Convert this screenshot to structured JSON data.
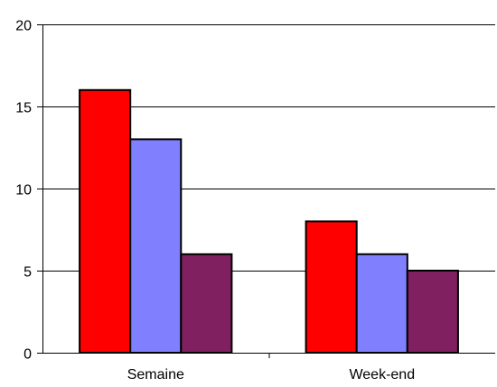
{
  "chart_data": {
    "type": "bar",
    "categories": [
      "Semaine",
      "Week-end"
    ],
    "series": [
      {
        "values": [
          16,
          8
        ],
        "color": "#ff0000"
      },
      {
        "values": [
          13,
          6
        ],
        "color": "#8080ff"
      },
      {
        "values": [
          6,
          5
        ],
        "color": "#802060"
      }
    ],
    "title": "",
    "xlabel": "",
    "ylabel": "",
    "ylim": [
      0,
      20
    ],
    "yticks": [
      0,
      5,
      10,
      15,
      20
    ],
    "grid": true,
    "legend": "none"
  }
}
